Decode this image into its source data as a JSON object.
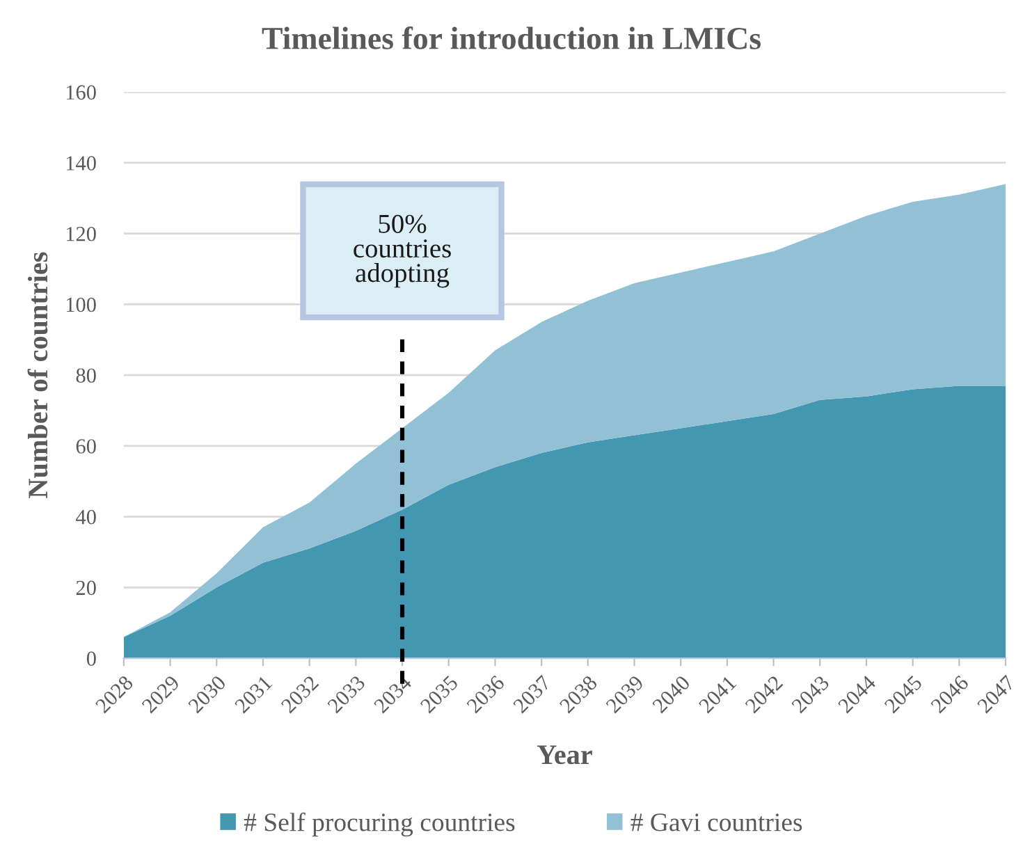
{
  "chart_data": {
    "type": "area",
    "title": "Timelines for introduction in LMICs",
    "xlabel": "Year",
    "ylabel": "Number of countries",
    "categories": [
      "2028",
      "2029",
      "2030",
      "2031",
      "2032",
      "2033",
      "2034",
      "2035",
      "2036",
      "2037",
      "2038",
      "2039",
      "2040",
      "2041",
      "2042",
      "2043",
      "2044",
      "2045",
      "2046",
      "2047"
    ],
    "stacked": true,
    "series": [
      {
        "name": "# Self procuring countries",
        "color": "#4397b0",
        "values": [
          6,
          12,
          20,
          27,
          31,
          36,
          42,
          49,
          54,
          58,
          61,
          63,
          65,
          67,
          69,
          73,
          74,
          76,
          77,
          77
        ]
      },
      {
        "name": "# Gavi countries",
        "color": "#92c1d6",
        "values": [
          0,
          1,
          4,
          10,
          13,
          19,
          23,
          26,
          33,
          37,
          40,
          43,
          44,
          45,
          46,
          47,
          51,
          53,
          54,
          57
        ]
      }
    ],
    "ylim": [
      0,
      160
    ],
    "yticks": [
      0,
      20,
      40,
      60,
      80,
      100,
      120,
      140,
      160
    ],
    "grid": "y",
    "legend": "bottom",
    "ref_lines": [
      {
        "axis": "x",
        "value": "2034",
        "label": "50%\ncountries\nadopting",
        "color": "#000000",
        "line_style": "dashed"
      }
    ]
  }
}
